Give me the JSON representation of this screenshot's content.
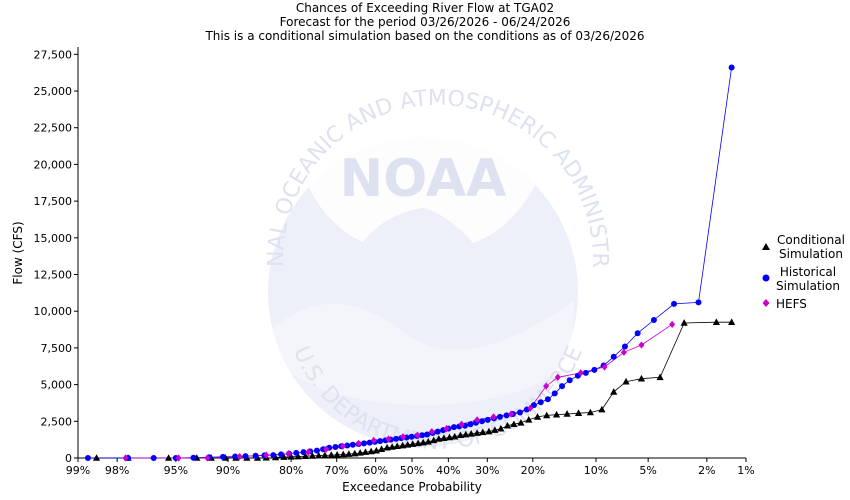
{
  "chart_data": {
    "type": "scatter",
    "title_lines": [
      "Chances of Exceeding River Flow at TGA02",
      "Forecast for the period 03/26/2026 - 06/24/2026",
      "This is a conditional simulation based on the conditions as of 03/26/2026"
    ],
    "xlabel": "Exceedance Probability",
    "ylabel": "Flow (CFS)",
    "x_scale": "normal-probability",
    "xlim": [
      99,
      1
    ],
    "ylim": [
      0,
      28000
    ],
    "x_ticks": [
      {
        "value": 99,
        "label": "99%"
      },
      {
        "value": 98,
        "label": "98%"
      },
      {
        "value": 95,
        "label": "95%"
      },
      {
        "value": 90,
        "label": "90%"
      },
      {
        "value": 80,
        "label": "80%"
      },
      {
        "value": 70,
        "label": "70%"
      },
      {
        "value": 60,
        "label": "60%"
      },
      {
        "value": 50,
        "label": "50%"
      },
      {
        "value": 40,
        "label": "40%"
      },
      {
        "value": 30,
        "label": "30%"
      },
      {
        "value": 20,
        "label": "20%"
      },
      {
        "value": 10,
        "label": "10%"
      },
      {
        "value": 5,
        "label": "5%"
      },
      {
        "value": 2,
        "label": "2%"
      },
      {
        "value": 1,
        "label": "1%"
      }
    ],
    "y_ticks": [
      {
        "value": 0,
        "label": "0"
      },
      {
        "value": 2500,
        "label": "2,500"
      },
      {
        "value": 5000,
        "label": "5,000"
      },
      {
        "value": 7500,
        "label": "7,500"
      },
      {
        "value": 10000,
        "label": "10,000"
      },
      {
        "value": 12500,
        "label": "12,500"
      },
      {
        "value": 15000,
        "label": "15,000"
      },
      {
        "value": 17500,
        "label": "17,500"
      },
      {
        "value": 20000,
        "label": "20,000"
      },
      {
        "value": 22500,
        "label": "22,500"
      },
      {
        "value": 25000,
        "label": "25,000"
      },
      {
        "value": 27500,
        "label": "27,500"
      }
    ],
    "watermark": {
      "center_text": "NOAA",
      "ring_top": "NATIONAL OCEANIC AND ATMOSPHERIC ADMINISTRATION",
      "ring_bottom": "U.S. DEPARTMENT OF COMMERCE"
    },
    "series": [
      {
        "name": "Conditional Simulation",
        "legend": [
          "Conditional",
          "Simulation"
        ],
        "marker": "triangle",
        "color": "#000000",
        "line_color": "#000000",
        "connect_from_index": 10,
        "x": [
          98.6,
          97.6,
          95.5,
          93.3,
          91.9,
          90.3,
          89.0,
          87.5,
          85.9,
          84.5,
          82.9,
          81.4,
          80.0,
          78.6,
          77.1,
          75.6,
          74.2,
          72.8,
          71.3,
          69.9,
          68.4,
          67.0,
          65.5,
          64.1,
          62.7,
          61.2,
          59.8,
          58.4,
          56.9,
          55.5,
          54.1,
          52.6,
          51.2,
          49.8,
          48.3,
          46.9,
          45.5,
          44.0,
          42.6,
          41.2,
          39.7,
          38.3,
          36.8,
          35.4,
          34.0,
          32.5,
          31.1,
          29.6,
          28.2,
          26.8,
          25.3,
          23.9,
          22.4,
          20.8,
          19.1,
          17.4,
          15.7,
          14.0,
          12.3,
          10.7,
          9.3,
          8.0,
          6.8,
          5.5,
          4.2,
          2.9,
          1.7,
          1.3
        ],
        "y": [
          0,
          0,
          0,
          0,
          0,
          0,
          0,
          0,
          0,
          20,
          40,
          60,
          80,
          100,
          120,
          140,
          160,
          180,
          200,
          220,
          240,
          270,
          300,
          350,
          400,
          450,
          500,
          600,
          700,
          750,
          800,
          850,
          900,
          950,
          1000,
          1050,
          1100,
          1200,
          1300,
          1350,
          1400,
          1450,
          1550,
          1600,
          1650,
          1700,
          1750,
          1800,
          1900,
          2000,
          2200,
          2300,
          2400,
          2600,
          2800,
          2900,
          2950,
          3000,
          3050,
          3100,
          3300,
          4500,
          5200,
          5400,
          5500,
          9200,
          9250,
          9250
        ]
      },
      {
        "name": "Historical Simulation",
        "legend": [
          "Historical",
          "Simulation"
        ],
        "marker": "circle",
        "color": "#0000ff",
        "line_color": "#0000ff",
        "connect_from_index": 0,
        "x": [
          98.8,
          97.6,
          96.4,
          95.0,
          93.6,
          92.1,
          90.6,
          89.1,
          87.7,
          86.2,
          84.8,
          83.3,
          81.9,
          80.4,
          79.0,
          77.5,
          76.1,
          74.6,
          73.2,
          71.8,
          70.3,
          68.9,
          67.4,
          66.0,
          64.5,
          63.1,
          61.6,
          60.2,
          58.8,
          57.3,
          55.9,
          54.4,
          53.0,
          51.5,
          50.1,
          48.6,
          47.2,
          45.8,
          44.3,
          42.9,
          41.4,
          40.0,
          38.5,
          37.1,
          35.6,
          34.2,
          32.8,
          31.3,
          29.9,
          28.4,
          27.0,
          25.5,
          24.1,
          22.6,
          21.2,
          19.8,
          18.5,
          17.2,
          16.0,
          14.8,
          13.6,
          12.4,
          11.3,
          10.2,
          9.1,
          8.0,
          6.9,
          5.8,
          4.6,
          3.4,
          2.3,
          1.3
        ],
        "y": [
          0,
          0,
          0,
          0,
          20,
          50,
          80,
          100,
          130,
          150,
          180,
          200,
          250,
          300,
          350,
          400,
          450,
          500,
          600,
          700,
          750,
          800,
          850,
          900,
          950,
          1000,
          1050,
          1100,
          1150,
          1200,
          1250,
          1300,
          1350,
          1400,
          1450,
          1500,
          1550,
          1600,
          1700,
          1800,
          1900,
          2000,
          2100,
          2150,
          2200,
          2300,
          2400,
          2500,
          2600,
          2700,
          2800,
          2900,
          3000,
          3100,
          3300,
          3600,
          3800,
          4000,
          4400,
          4900,
          5300,
          5600,
          5800,
          6000,
          6300,
          6900,
          7600,
          8500,
          9400,
          10500,
          10600,
          26600
        ]
      },
      {
        "name": "HEFS",
        "legend": [
          "HEFS"
        ],
        "marker": "diamond",
        "color": "#cc00cc",
        "line_color": "#cc00cc",
        "connect_from_index": 0,
        "x": [
          97.7,
          94.8,
          92.3,
          88.5,
          84.5,
          80.5,
          76.5,
          72.5,
          68.5,
          64.5,
          60.5,
          56.5,
          52.5,
          48.5,
          44.5,
          40.5,
          36.5,
          32.5,
          28.5,
          24.5,
          20.5,
          17.5,
          15.5,
          12.0,
          9.0,
          7.0,
          5.5,
          3.5
        ],
        "y": [
          0,
          0,
          0,
          100,
          200,
          300,
          400,
          600,
          800,
          1000,
          1200,
          1300,
          1450,
          1550,
          1800,
          2000,
          2300,
          2600,
          2800,
          3000,
          3400,
          4900,
          5500,
          5800,
          6200,
          7200,
          7700,
          9100
        ]
      }
    ]
  }
}
